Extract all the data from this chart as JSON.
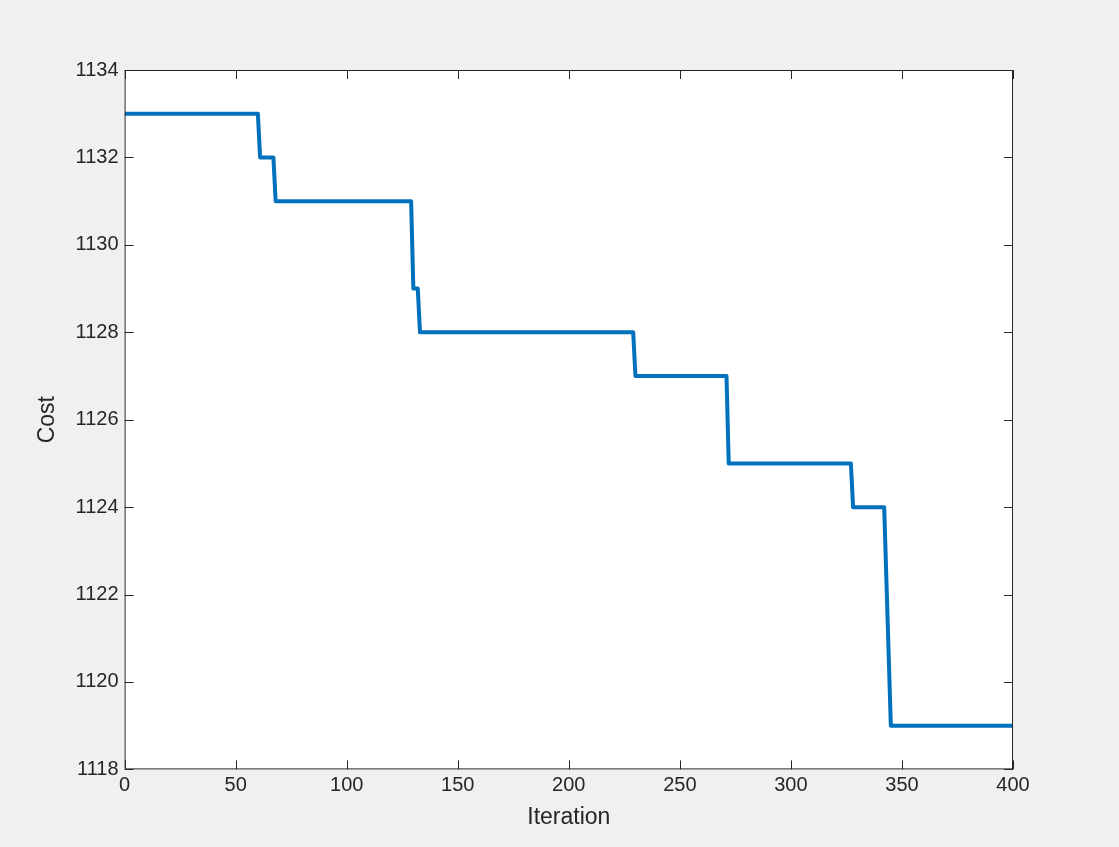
{
  "chart_data": {
    "type": "line",
    "xlabel": "Iteration",
    "ylabel": "Cost",
    "xlim": [
      0,
      400
    ],
    "xticks": [
      0,
      50,
      100,
      150,
      200,
      250,
      300,
      350,
      400
    ],
    "ylim": [
      1118,
      1134
    ],
    "yticks": [
      1118,
      1120,
      1122,
      1124,
      1126,
      1128,
      1130,
      1132,
      1134
    ],
    "grid": false,
    "legend": false,
    "marker": "none",
    "line_style": "solid",
    "series": [
      {
        "color": "#0072bd",
        "x": [
          0,
          60,
          61,
          67,
          68,
          129,
          130,
          132,
          133,
          229,
          230,
          271,
          272,
          327,
          328,
          342,
          345,
          400
        ],
        "values": [
          1133,
          1133,
          1132,
          1132,
          1131,
          1131,
          1129,
          1129,
          1128,
          1128,
          1127,
          1127,
          1125,
          1125,
          1124,
          1124,
          1119,
          1119
        ]
      }
    ]
  }
}
